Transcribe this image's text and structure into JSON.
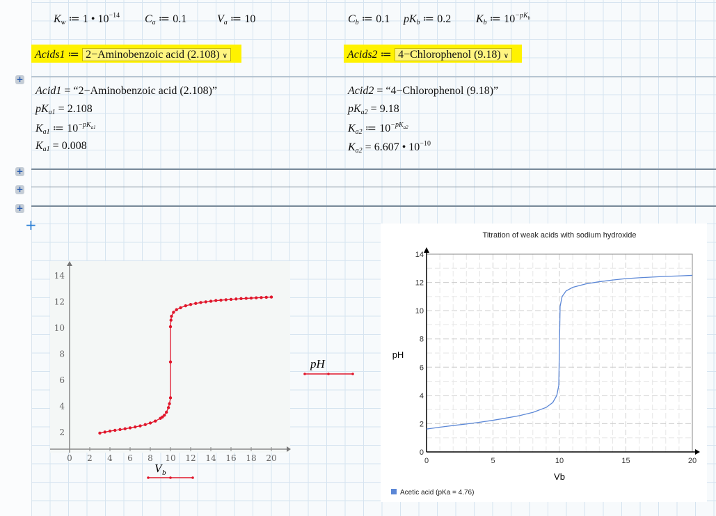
{
  "definitions": {
    "Kw": {
      "name": "K",
      "sub": "w",
      "op": "≔",
      "value": "1 • 10",
      "exp": "−14"
    },
    "Ca": {
      "name": "C",
      "sub": "a",
      "op": "≔",
      "value": "0.1"
    },
    "Va": {
      "name": "V",
      "sub": "a",
      "op": "≔",
      "value": "10"
    },
    "Cb": {
      "name": "C",
      "sub": "b",
      "op": "≔",
      "value": "0.1"
    },
    "pKb": {
      "name": "pK",
      "sub": "b",
      "op": "≔",
      "value": "0.2"
    },
    "Kb": {
      "name": "K",
      "sub": "b",
      "op": "≔",
      "value": "10",
      "exp": "−pK",
      "exp_sub": "b"
    }
  },
  "selectors": [
    {
      "name": "Acids1",
      "op": "≔",
      "selected": "2−Aminobenzoic acid (2.108)"
    },
    {
      "name": "Acids2",
      "op": "≔",
      "selected": "4−Chlorophenol (9.18)"
    }
  ],
  "results": [
    {
      "acid_name": "Acid1",
      "acid_value": "“2−Aminobenzoic acid (2.108)”",
      "pka_name": "pK",
      "pka_sub": "a1",
      "pka_value": "2.108",
      "ka_def": "10",
      "ka_def_exp": "−pK",
      "ka_def_exp_sub": "a1",
      "ka_name": "K",
      "ka_sub": "a1",
      "ka_value": "0.008",
      "ka_value_exp": ""
    },
    {
      "acid_name": "Acid2",
      "acid_value": "“4−Chlorophenol (9.18)”",
      "pka_name": "pK",
      "pka_sub": "a2",
      "pka_value": "9.18",
      "ka_def": "10",
      "ka_def_exp": "−pK",
      "ka_def_exp_sub": "a2",
      "ka_name": "K",
      "ka_sub": "a2",
      "ka_value": "6.607 • 10",
      "ka_value_exp": "−10"
    }
  ],
  "ops": {
    "def": "≔",
    "eq": "="
  },
  "icons": {
    "region_toggle": "plus-icon",
    "dropdown": "chevron-down-icon"
  },
  "chart_data": [
    {
      "type": "scatter",
      "xlabel": "V",
      "xlabel_sub": "b",
      "ylabel": "pH",
      "xticks": [
        0,
        2,
        4,
        6,
        8,
        10,
        12,
        14,
        16,
        18,
        20
      ],
      "yticks": [
        2,
        4,
        6,
        8,
        10,
        12,
        14
      ],
      "color": "#e0162b",
      "x": [
        3,
        3.5,
        4,
        4.5,
        5,
        5.5,
        6,
        6.5,
        7,
        7.5,
        8,
        8.5,
        9,
        9.2,
        9.4,
        9.6,
        9.8,
        9.9,
        10,
        10,
        10,
        10.05,
        10.1,
        10.3,
        10.6,
        11,
        11.5,
        12,
        12.5,
        13,
        13.5,
        14,
        14.5,
        15,
        15.5,
        16,
        16.5,
        17,
        17.5,
        18,
        18.5,
        19,
        19.5,
        20
      ],
      "y": [
        1.95,
        2.03,
        2.1,
        2.16,
        2.22,
        2.28,
        2.35,
        2.42,
        2.5,
        2.6,
        2.72,
        2.87,
        3.08,
        3.18,
        3.32,
        3.55,
        3.9,
        4.2,
        4.65,
        7.4,
        10.1,
        10.6,
        10.9,
        11.2,
        11.4,
        11.55,
        11.7,
        11.8,
        11.88,
        11.95,
        12.0,
        12.05,
        12.1,
        12.13,
        12.16,
        12.19,
        12.22,
        12.25,
        12.27,
        12.29,
        12.31,
        12.33,
        12.35,
        12.37
      ]
    },
    {
      "type": "line",
      "title": "Titration of weak acids with sodium hydroxide",
      "xlabel": "Vb",
      "ylabel": "pH",
      "xlim": [
        0,
        20
      ],
      "ylim": [
        0,
        14
      ],
      "xticks": [
        0,
        5,
        10,
        15,
        20
      ],
      "yticks": [
        0,
        2,
        4,
        6,
        8,
        10,
        12,
        14
      ],
      "grid": true,
      "legend_position": "bottom-left",
      "series": [
        {
          "name": "Acetic acid (pKa = 4.76)",
          "color": "#5b87d6",
          "x": [
            0,
            1,
            2,
            3,
            4,
            5,
            6,
            7,
            8,
            9,
            9.5,
            9.8,
            9.95,
            10,
            10.05,
            10.2,
            10.5,
            11,
            12,
            13,
            14,
            15,
            16,
            17,
            18,
            19,
            20
          ],
          "y": [
            1.62,
            1.75,
            1.87,
            1.98,
            2.1,
            2.24,
            2.4,
            2.57,
            2.8,
            3.15,
            3.5,
            4.0,
            4.7,
            7.5,
            10.3,
            11.0,
            11.4,
            11.65,
            11.9,
            12.05,
            12.17,
            12.27,
            12.33,
            12.38,
            12.43,
            12.46,
            12.5
          ]
        }
      ]
    }
  ]
}
